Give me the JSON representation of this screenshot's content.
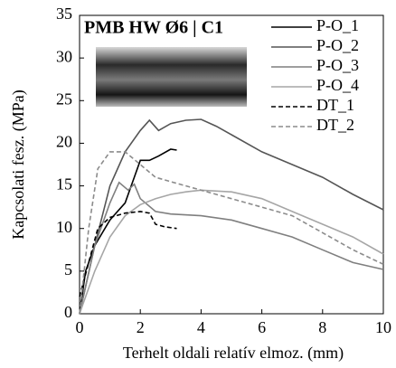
{
  "chart_data": {
    "type": "line",
    "title": "PMB HW Ø6 | C1",
    "xlabel": "Terhelt oldali relatív elmoz. (mm)",
    "ylabel": "Kapcsolati fesz. (MPa)",
    "xlim": [
      0,
      10
    ],
    "xticks": [
      0,
      2,
      4,
      6,
      8,
      10
    ],
    "ylim": [
      0,
      35
    ],
    "yticks": [
      0,
      5,
      10,
      15,
      20,
      25,
      30,
      35
    ],
    "legend": "upper right",
    "series": [
      {
        "name": "P-O_1",
        "color": "#000000",
        "linestyle": "solid",
        "x": [
          0,
          0.2,
          0.5,
          1,
          1.5,
          1.8,
          2,
          2.3,
          2.6,
          3,
          3.2
        ],
        "values": [
          0,
          5,
          8,
          11,
          13,
          16,
          18,
          18,
          18.5,
          19.3,
          19.2
        ]
      },
      {
        "name": "P-O_2",
        "color": "#555555",
        "linestyle": "solid",
        "x": [
          0,
          0.5,
          1,
          1.5,
          2,
          2.3,
          2.6,
          3,
          3.5,
          4,
          4.5,
          5,
          6,
          7,
          8,
          9,
          10
        ],
        "values": [
          0,
          8,
          15,
          19,
          21.5,
          22.7,
          21.5,
          22.3,
          22.7,
          22.8,
          22,
          21,
          19,
          17.5,
          16,
          14,
          12.2
        ]
      },
      {
        "name": "P-O_3",
        "color": "#7f7f7f",
        "linestyle": "solid",
        "x": [
          0,
          0.5,
          1,
          1.3,
          1.6,
          1.8,
          2,
          2.5,
          3,
          4,
          5,
          6,
          7,
          8,
          9,
          10
        ],
        "values": [
          0,
          8,
          13,
          15.4,
          14.5,
          15.2,
          13.5,
          12,
          11.7,
          11.5,
          11,
          10,
          9,
          7.5,
          6,
          5.2
        ]
      },
      {
        "name": "P-O_4",
        "color": "#a6a6a6",
        "linestyle": "solid",
        "x": [
          0,
          0.5,
          1,
          1.5,
          2,
          2.5,
          3,
          3.5,
          4,
          5,
          6,
          7,
          8,
          9,
          10
        ],
        "values": [
          0,
          5,
          9,
          11.5,
          12.8,
          13.5,
          14,
          14.3,
          14.5,
          14.3,
          13.5,
          12,
          10.5,
          9,
          7
        ]
      },
      {
        "name": "DT_1",
        "color": "#000000",
        "linestyle": "dashed",
        "x": [
          0,
          0.3,
          0.6,
          1,
          1.5,
          2,
          2.3,
          2.5,
          2.8,
          3.2
        ],
        "values": [
          2,
          6,
          10,
          11.3,
          11.8,
          12,
          11.8,
          10.5,
          10.2,
          10
        ]
      },
      {
        "name": "DT_2",
        "color": "#8c8c8c",
        "linestyle": "dashed",
        "x": [
          0,
          0.3,
          0.6,
          1,
          1.5,
          2,
          2.5,
          3,
          4,
          5,
          6,
          7,
          8,
          9,
          10
        ],
        "values": [
          0,
          10,
          17,
          19,
          19,
          17.5,
          16,
          15.5,
          14.5,
          13.5,
          12.5,
          11.5,
          9.5,
          7.5,
          5.8
        ]
      }
    ]
  }
}
